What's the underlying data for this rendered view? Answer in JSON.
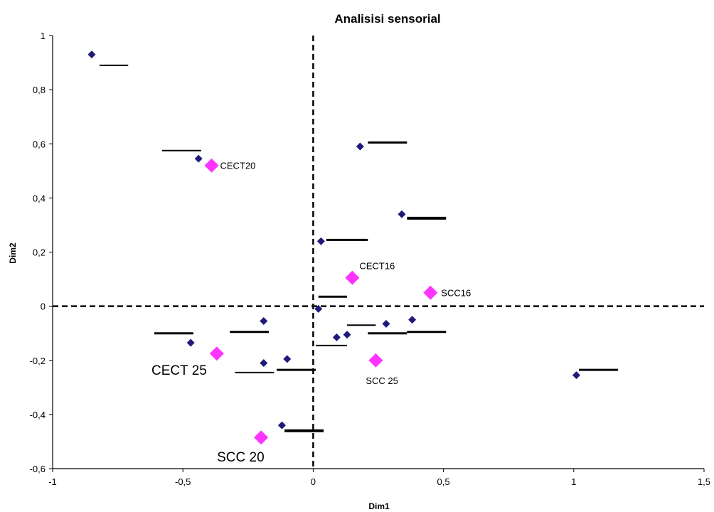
{
  "chart_data": {
    "type": "scatter",
    "title": "Analisisi sensorial",
    "xlabel": "Dim1",
    "ylabel": "Dim2",
    "xlim": [
      -1,
      1.5
    ],
    "ylim": [
      -0.6,
      1
    ],
    "x_ticks": [
      "-1",
      "-0,5",
      "0",
      "0,5",
      "1",
      "1,5"
    ],
    "y_ticks": [
      "-0,6",
      "-0,4",
      "-0,2",
      "0",
      "0,2",
      "0,4",
      "0,6",
      "0,8",
      "1"
    ],
    "grid": false,
    "legend": "none",
    "reference_lines": [
      {
        "axis": "x",
        "value": 0,
        "style": "dashed"
      },
      {
        "axis": "y",
        "value": 0,
        "style": "dashed"
      }
    ],
    "series": [
      {
        "marker": "diamond",
        "color": "#1f1a7a",
        "points": [
          {
            "x": -0.85,
            "y": 0.93
          },
          {
            "x": -0.44,
            "y": 0.545
          },
          {
            "x": 0.18,
            "y": 0.59
          },
          {
            "x": 0.34,
            "y": 0.34
          },
          {
            "x": 0.03,
            "y": 0.24
          },
          {
            "x": 0.02,
            "y": -0.01
          },
          {
            "x": -0.19,
            "y": -0.055
          },
          {
            "x": 0.38,
            "y": -0.05
          },
          {
            "x": 0.28,
            "y": -0.065
          },
          {
            "x": 0.13,
            "y": -0.105
          },
          {
            "x": 0.09,
            "y": -0.115
          },
          {
            "x": -0.47,
            "y": -0.135
          },
          {
            "x": -0.1,
            "y": -0.195
          },
          {
            "x": -0.19,
            "y": -0.21
          },
          {
            "x": 1.01,
            "y": -0.255
          },
          {
            "x": -0.12,
            "y": -0.44
          }
        ],
        "labels": [
          "",
          "",
          "",
          "",
          "",
          "",
          "",
          "",
          "",
          "",
          "",
          "",
          "",
          "",
          "",
          ""
        ]
      },
      {
        "marker": "diamond",
        "color": "#ff33ff",
        "points": [
          {
            "x": -0.39,
            "y": 0.52,
            "label": "CECT20"
          },
          {
            "x": 0.15,
            "y": 0.105,
            "label": "CECT16"
          },
          {
            "x": 0.45,
            "y": 0.05,
            "label": "SCC16"
          },
          {
            "x": -0.37,
            "y": -0.175,
            "label": "CECT 25"
          },
          {
            "x": 0.24,
            "y": -0.2,
            "label": "SCC 25"
          },
          {
            "x": -0.2,
            "y": -0.485,
            "label": "SCC 20"
          }
        ]
      }
    ],
    "label_marks": [
      {
        "x1": -0.82,
        "x2": -0.71,
        "y": 0.89,
        "w": 1
      },
      {
        "x1": -0.58,
        "x2": -0.43,
        "y": 0.575,
        "w": 1
      },
      {
        "x1": 0.21,
        "x2": 0.36,
        "y": 0.605,
        "w": 2
      },
      {
        "x1": 0.36,
        "x2": 0.51,
        "y": 0.325,
        "w": 3
      },
      {
        "x1": 0.05,
        "x2": 0.21,
        "y": 0.245,
        "w": 2
      },
      {
        "x1": 0.02,
        "x2": 0.13,
        "y": 0.035,
        "w": 2
      },
      {
        "x1": -0.61,
        "x2": -0.46,
        "y": -0.1,
        "w": 2
      },
      {
        "x1": -0.32,
        "x2": -0.17,
        "y": -0.095,
        "w": 2
      },
      {
        "x1": 0.13,
        "x2": 0.24,
        "y": -0.07,
        "w": 1
      },
      {
        "x1": 0.21,
        "x2": 0.36,
        "y": -0.1,
        "w": 2
      },
      {
        "x1": 0.36,
        "x2": 0.51,
        "y": -0.095,
        "w": 2
      },
      {
        "x1": 0.01,
        "x2": 0.13,
        "y": -0.145,
        "w": 1
      },
      {
        "x1": -0.3,
        "x2": -0.15,
        "y": -0.245,
        "w": 1
      },
      {
        "x1": -0.14,
        "x2": 0.01,
        "y": -0.235,
        "w": 2
      },
      {
        "x1": 1.02,
        "x2": 1.17,
        "y": -0.235,
        "w": 2
      },
      {
        "x1": -0.11,
        "x2": 0.04,
        "y": -0.46,
        "w": 3
      }
    ]
  }
}
